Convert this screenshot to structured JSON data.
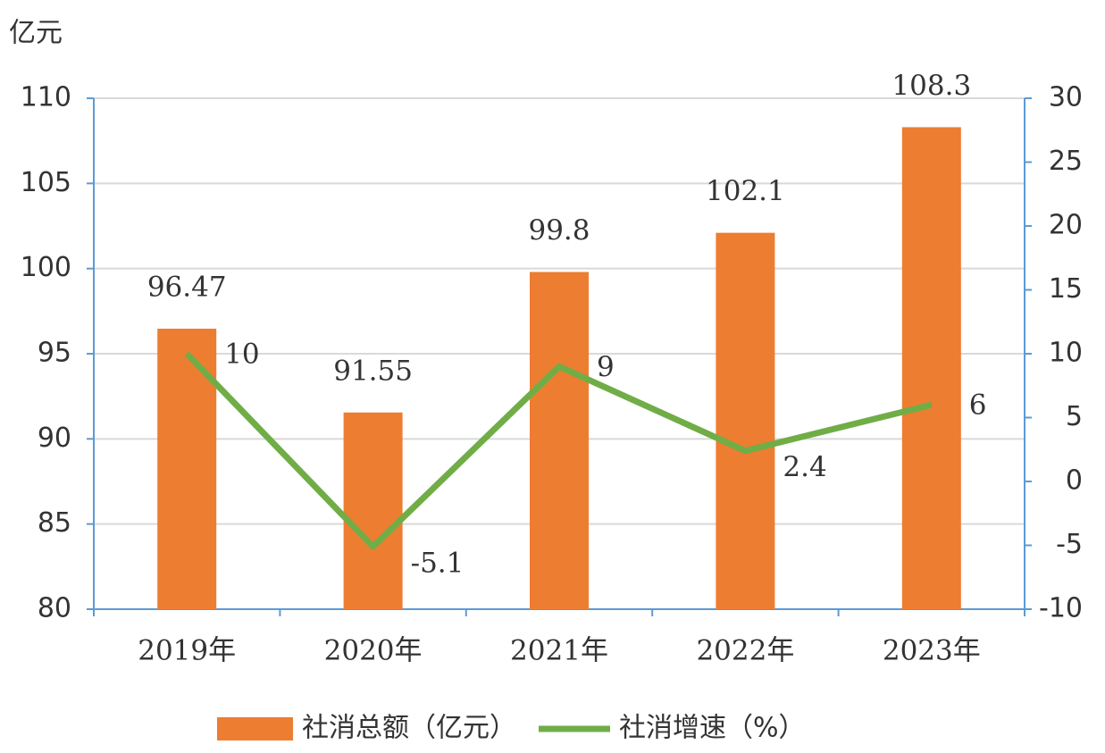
{
  "chart_data": {
    "type": "combo",
    "y_label": "亿元",
    "categories": [
      "2019年",
      "2020年",
      "2021年",
      "2022年",
      "2023年"
    ],
    "series": [
      {
        "name": "社消总额（亿元）",
        "type": "bar",
        "color": "#ed7d31",
        "values": [
          96.47,
          91.55,
          99.8,
          102.1,
          108.3
        ]
      },
      {
        "name": "社消增速（%）",
        "type": "line",
        "axis": "y2",
        "color": "#70ad47",
        "values": [
          10,
          -5.1,
          9,
          2.4,
          6
        ]
      }
    ],
    "ylim": [
      80,
      110
    ],
    "yticks": [
      80,
      85,
      90,
      95,
      100,
      105,
      110
    ],
    "y2lim": [
      -10,
      30
    ],
    "y2ticks": [
      -10,
      -5,
      0,
      5,
      10,
      15,
      20,
      25,
      30
    ],
    "grid": true,
    "legend": "bottom"
  }
}
